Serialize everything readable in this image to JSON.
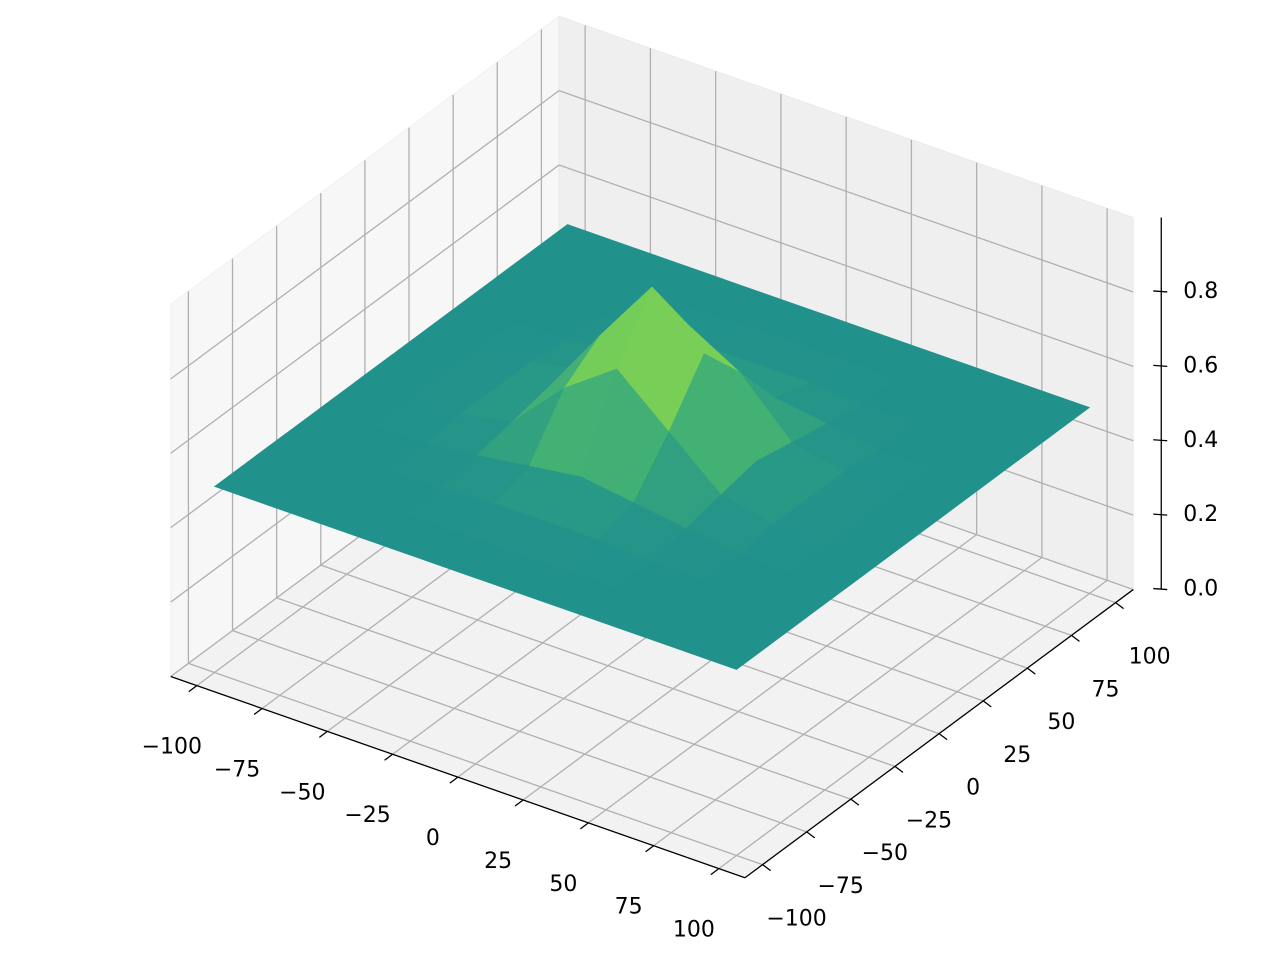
{
  "chart_data": {
    "type": "surface",
    "x": [
      -100,
      -80,
      -60,
      -40,
      -20,
      0,
      20,
      40,
      60,
      80,
      100
    ],
    "y": [
      -100,
      -80,
      -60,
      -40,
      -20,
      0,
      20,
      40,
      60,
      80,
      100
    ],
    "z": [
      [
        0.5,
        0.5,
        0.5,
        0.5,
        0.5,
        0.5,
        0.5,
        0.5,
        0.5,
        0.5,
        0.5
      ],
      [
        0.5,
        0.5,
        0.5,
        0.5,
        0.5,
        0.5,
        0.5,
        0.5,
        0.5,
        0.5,
        0.5
      ],
      [
        0.5,
        0.5,
        0.5,
        0.5,
        0.51,
        0.51,
        0.51,
        0.5,
        0.5,
        0.5,
        0.5
      ],
      [
        0.5,
        0.5,
        0.5,
        0.52,
        0.54,
        0.56,
        0.54,
        0.52,
        0.5,
        0.5,
        0.5
      ],
      [
        0.5,
        0.5,
        0.51,
        0.54,
        0.68,
        0.78,
        0.66,
        0.54,
        0.51,
        0.5,
        0.5
      ],
      [
        0.5,
        0.5,
        0.51,
        0.56,
        0.75,
        0.93,
        0.8,
        0.56,
        0.51,
        0.5,
        0.5
      ],
      [
        0.5,
        0.5,
        0.51,
        0.54,
        0.67,
        0.76,
        0.68,
        0.54,
        0.51,
        0.5,
        0.5
      ],
      [
        0.5,
        0.5,
        0.5,
        0.52,
        0.54,
        0.56,
        0.54,
        0.52,
        0.5,
        0.5,
        0.5
      ],
      [
        0.5,
        0.5,
        0.5,
        0.5,
        0.51,
        0.51,
        0.51,
        0.5,
        0.5,
        0.5,
        0.5
      ],
      [
        0.5,
        0.5,
        0.5,
        0.5,
        0.5,
        0.5,
        0.5,
        0.5,
        0.5,
        0.5,
        0.5
      ],
      [
        0.5,
        0.5,
        0.5,
        0.5,
        0.5,
        0.5,
        0.5,
        0.5,
        0.5,
        0.5,
        0.5
      ]
    ],
    "colormap": [
      "#440154",
      "#3b528b",
      "#21918c",
      "#5ec962",
      "#fde725"
    ],
    "xlim": [
      -110,
      110
    ],
    "ylim": [
      -110,
      110
    ],
    "zlim": [
      0,
      1
    ],
    "xticks": [
      {
        "value": -100,
        "label": "−100"
      },
      {
        "value": -75,
        "label": "−75"
      },
      {
        "value": -50,
        "label": "−50"
      },
      {
        "value": -25,
        "label": "−25"
      },
      0,
      25,
      50,
      75,
      100
    ],
    "yticks": [
      {
        "value": -100,
        "label": "−100"
      },
      {
        "value": -75,
        "label": "−75"
      },
      {
        "value": -50,
        "label": "−50"
      },
      {
        "value": -25,
        "label": "−25"
      },
      0,
      25,
      50,
      75,
      100
    ],
    "zticks": [
      {
        "value": 0,
        "label": "0.0"
      },
      0.2,
      0.4,
      0.6,
      0.8
    ],
    "grid": true
  }
}
